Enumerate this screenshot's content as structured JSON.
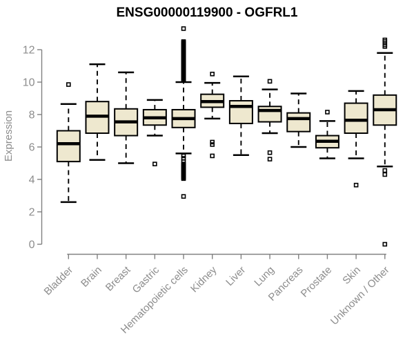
{
  "chart_data": {
    "type": "boxplot",
    "title": "ENSG00000119900 - OGFRL1",
    "ylabel": "Expression",
    "yticks": [
      0,
      2,
      4,
      6,
      8,
      10,
      12
    ],
    "ylim": [
      0,
      13.4
    ],
    "grid": false,
    "categories": [
      "Bladder",
      "Brain",
      "Breast",
      "Gastric",
      "Hematopoietic cells",
      "Kidney",
      "Liver",
      "Lung",
      "Pancreas",
      "Prostate",
      "Skin",
      "Unknown / Other"
    ],
    "boxes": [
      {
        "category": "Bladder",
        "whisker_low": 2.6,
        "q1": 5.1,
        "median": 6.2,
        "q3": 7.0,
        "whisker_high": 8.65,
        "outliers": [
          9.85
        ]
      },
      {
        "category": "Brain",
        "whisker_low": 5.2,
        "q1": 6.85,
        "median": 7.9,
        "q3": 8.8,
        "whisker_high": 11.1,
        "outliers": []
      },
      {
        "category": "Breast",
        "whisker_low": 5.0,
        "q1": 6.7,
        "median": 7.55,
        "q3": 8.35,
        "whisker_high": 10.6,
        "outliers": []
      },
      {
        "category": "Gastric",
        "whisker_low": 6.7,
        "q1": 7.35,
        "median": 7.8,
        "q3": 8.3,
        "whisker_high": 8.9,
        "outliers": [
          4.95
        ]
      },
      {
        "category": "Hematopoietic cells",
        "whisker_low": 5.6,
        "q1": 7.2,
        "median": 7.75,
        "q3": 8.3,
        "whisker_high": 10.0,
        "outliers": [
          13.3,
          5.45,
          5.3,
          5.1,
          2.95
        ],
        "outlier_strips": [
          {
            "from": 10.1,
            "to": 12.5,
            "step": 0.05
          },
          {
            "from": 4.05,
            "to": 4.95,
            "step": 0.05
          }
        ]
      },
      {
        "category": "Kidney",
        "whisker_low": 7.75,
        "q1": 8.45,
        "median": 8.8,
        "q3": 9.25,
        "whisker_high": 9.95,
        "outliers": [
          10.5,
          6.3,
          6.15,
          5.45
        ]
      },
      {
        "category": "Liver",
        "whisker_low": 5.5,
        "q1": 7.45,
        "median": 8.5,
        "q3": 8.85,
        "whisker_high": 10.35,
        "outliers": []
      },
      {
        "category": "Lung",
        "whisker_low": 6.85,
        "q1": 7.55,
        "median": 8.25,
        "q3": 8.5,
        "whisker_high": 9.55,
        "outliers": [
          10.05,
          5.65,
          5.25
        ]
      },
      {
        "category": "Pancreas",
        "whisker_low": 6.0,
        "q1": 6.95,
        "median": 7.75,
        "q3": 8.1,
        "whisker_high": 9.3,
        "outliers": []
      },
      {
        "category": "Prostate",
        "whisker_low": 5.3,
        "q1": 5.95,
        "median": 6.35,
        "q3": 6.7,
        "whisker_high": 7.6,
        "outliers": [
          8.15
        ]
      },
      {
        "category": "Skin",
        "whisker_low": 5.3,
        "q1": 6.85,
        "median": 7.65,
        "q3": 8.7,
        "whisker_high": 9.45,
        "outliers": [
          3.65
        ]
      },
      {
        "category": "Unknown / Other",
        "whisker_low": 4.8,
        "q1": 7.35,
        "median": 8.3,
        "q3": 9.2,
        "whisker_high": 11.8,
        "outliers": [
          12.6,
          12.5,
          12.3,
          12.2,
          4.55,
          4.3,
          0.0
        ]
      }
    ],
    "colors": {
      "box_fill": "#EEE8CF",
      "box_stroke": "#000000",
      "median": "#000000",
      "whisker": "#000000",
      "outlier": "#000000",
      "axis": "#808080",
      "tick_label": "#8C8C8C",
      "title": "#000000"
    }
  }
}
